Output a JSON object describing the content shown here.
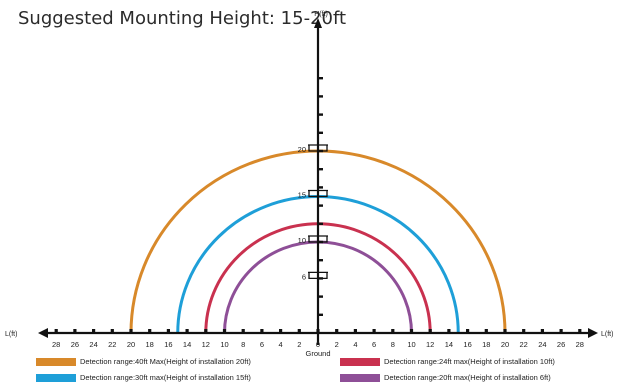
{
  "title": "Suggested Mounting Height: 15-20ft",
  "axes": {
    "x_label": "L(ft)",
    "y_label": "H(ft)",
    "ground_label": "Ground",
    "x_ticks": [
      "28",
      "26",
      "24",
      "22",
      "20",
      "18",
      "16",
      "14",
      "12",
      "10",
      "8",
      "6",
      "4",
      "2",
      "0",
      "2",
      "4",
      "6",
      "8",
      "10",
      "12",
      "14",
      "16",
      "18",
      "20",
      "22",
      "24",
      "26",
      "28"
    ],
    "y_markers": [
      "20",
      "15",
      "10",
      "6"
    ]
  },
  "ranges": [
    {
      "radius_ft": 20,
      "mount_height_ft": 20,
      "color": "#d8892a",
      "label": "Detection range:40ft Max(Height of installation 20ft)"
    },
    {
      "radius_ft": 15,
      "mount_height_ft": 15,
      "color": "#1e9fd8",
      "label": "Detection range:30ft max(Height of installation 15ft)"
    },
    {
      "radius_ft": 12,
      "mount_height_ft": 10,
      "color": "#c9314f",
      "label": "Detection range:24ft max(Height of installation 10ft)"
    },
    {
      "radius_ft": 10,
      "mount_height_ft": 6,
      "color": "#8e4f97",
      "label": "Detection range:20ft max(Height of installation 6ft)"
    }
  ]
}
